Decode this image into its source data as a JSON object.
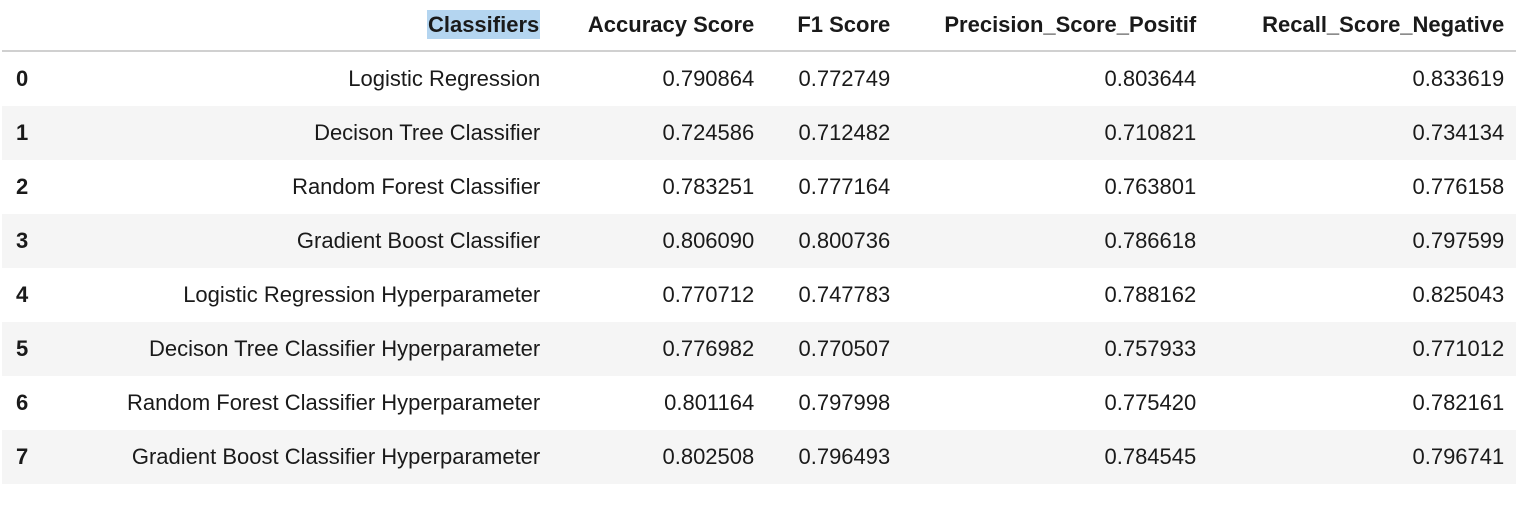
{
  "table": {
    "columns": [
      "",
      "Classifiers",
      "Accuracy Score",
      "F1 Score",
      "Precision_Score_Positif",
      "Recall_Score_Negative"
    ],
    "rows": [
      {
        "index": "0",
        "classifier": "Logistic Regression",
        "accuracy": "0.790864",
        "f1": "0.772749",
        "precision": "0.803644",
        "recall": "0.833619"
      },
      {
        "index": "1",
        "classifier": "Decison Tree Classifier",
        "accuracy": "0.724586",
        "f1": "0.712482",
        "precision": "0.710821",
        "recall": "0.734134"
      },
      {
        "index": "2",
        "classifier": "Random Forest Classifier",
        "accuracy": "0.783251",
        "f1": "0.777164",
        "precision": "0.763801",
        "recall": "0.776158"
      },
      {
        "index": "3",
        "classifier": "Gradient Boost Classifier",
        "accuracy": "0.806090",
        "f1": "0.800736",
        "precision": "0.786618",
        "recall": "0.797599"
      },
      {
        "index": "4",
        "classifier": "Logistic Regression Hyperparameter",
        "accuracy": "0.770712",
        "f1": "0.747783",
        "precision": "0.788162",
        "recall": "0.825043"
      },
      {
        "index": "5",
        "classifier": "Decison Tree Classifier Hyperparameter",
        "accuracy": "0.776982",
        "f1": "0.770507",
        "precision": "0.757933",
        "recall": "0.771012"
      },
      {
        "index": "6",
        "classifier": "Random Forest Classifier Hyperparameter",
        "accuracy": "0.801164",
        "f1": "0.797998",
        "precision": "0.775420",
        "recall": "0.782161"
      },
      {
        "index": "7",
        "classifier": "Gradient Boost Classifier Hyperparameter",
        "accuracy": "0.802508",
        "f1": "0.796493",
        "precision": "0.784545",
        "recall": "0.796741"
      }
    ]
  },
  "colors": {
    "selection_highlight": "#b4d5f0",
    "stripe": "#f5f5f5"
  }
}
